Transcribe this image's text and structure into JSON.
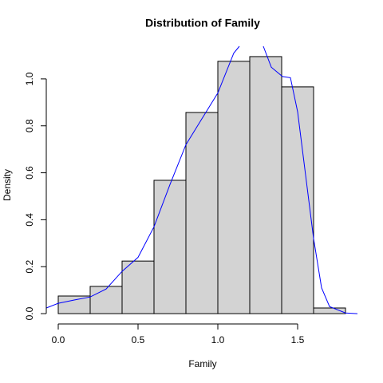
{
  "chart_data": {
    "type": "histogram",
    "title": "Distribution of Family",
    "x_label": "Family",
    "y_label": "Density",
    "bins": [
      0,
      0.2,
      0.4,
      0.6,
      0.8,
      1.0,
      1.2,
      1.4,
      1.6,
      1.8
    ],
    "values": [
      0.075,
      0.116,
      0.224,
      0.568,
      0.857,
      1.075,
      1.095,
      0.966,
      0.024
    ],
    "color": "#d3d3d3",
    "edge_color": "#000000",
    "density": {
      "color": "#0000ff",
      "x": [
        -0.075,
        0,
        0.1,
        0.2,
        0.3,
        0.4,
        0.5,
        0.6,
        0.7,
        0.8,
        0.9,
        1.0,
        1.1,
        1.135,
        1.2,
        1.285,
        1.335,
        1.405,
        1.455,
        1.5,
        1.55,
        1.6,
        1.65,
        1.7,
        1.8,
        1.875
      ],
      "values": [
        0.024,
        0.044,
        0.058,
        0.071,
        0.105,
        0.18,
        0.24,
        0.37,
        0.55,
        0.72,
        0.83,
        0.94,
        1.11,
        1.139,
        null,
        1.139,
        1.05,
        1.01,
        1.005,
        0.86,
        0.59,
        0.32,
        0.11,
        0.03,
        0.003,
        0
      ]
    },
    "xlim": [
      -0.075,
      1.875
    ],
    "ylim": [
      -0.044,
      1.139
    ],
    "xticks": [
      {
        "value": 0,
        "label": "0.0"
      },
      0.5,
      {
        "value": 1,
        "label": "1.0"
      },
      1.5
    ],
    "yticks": [
      {
        "value": 0,
        "label": "0.0"
      },
      0.2,
      0.4,
      0.6,
      0.8,
      {
        "value": 1,
        "label": "1.0"
      }
    ]
  }
}
